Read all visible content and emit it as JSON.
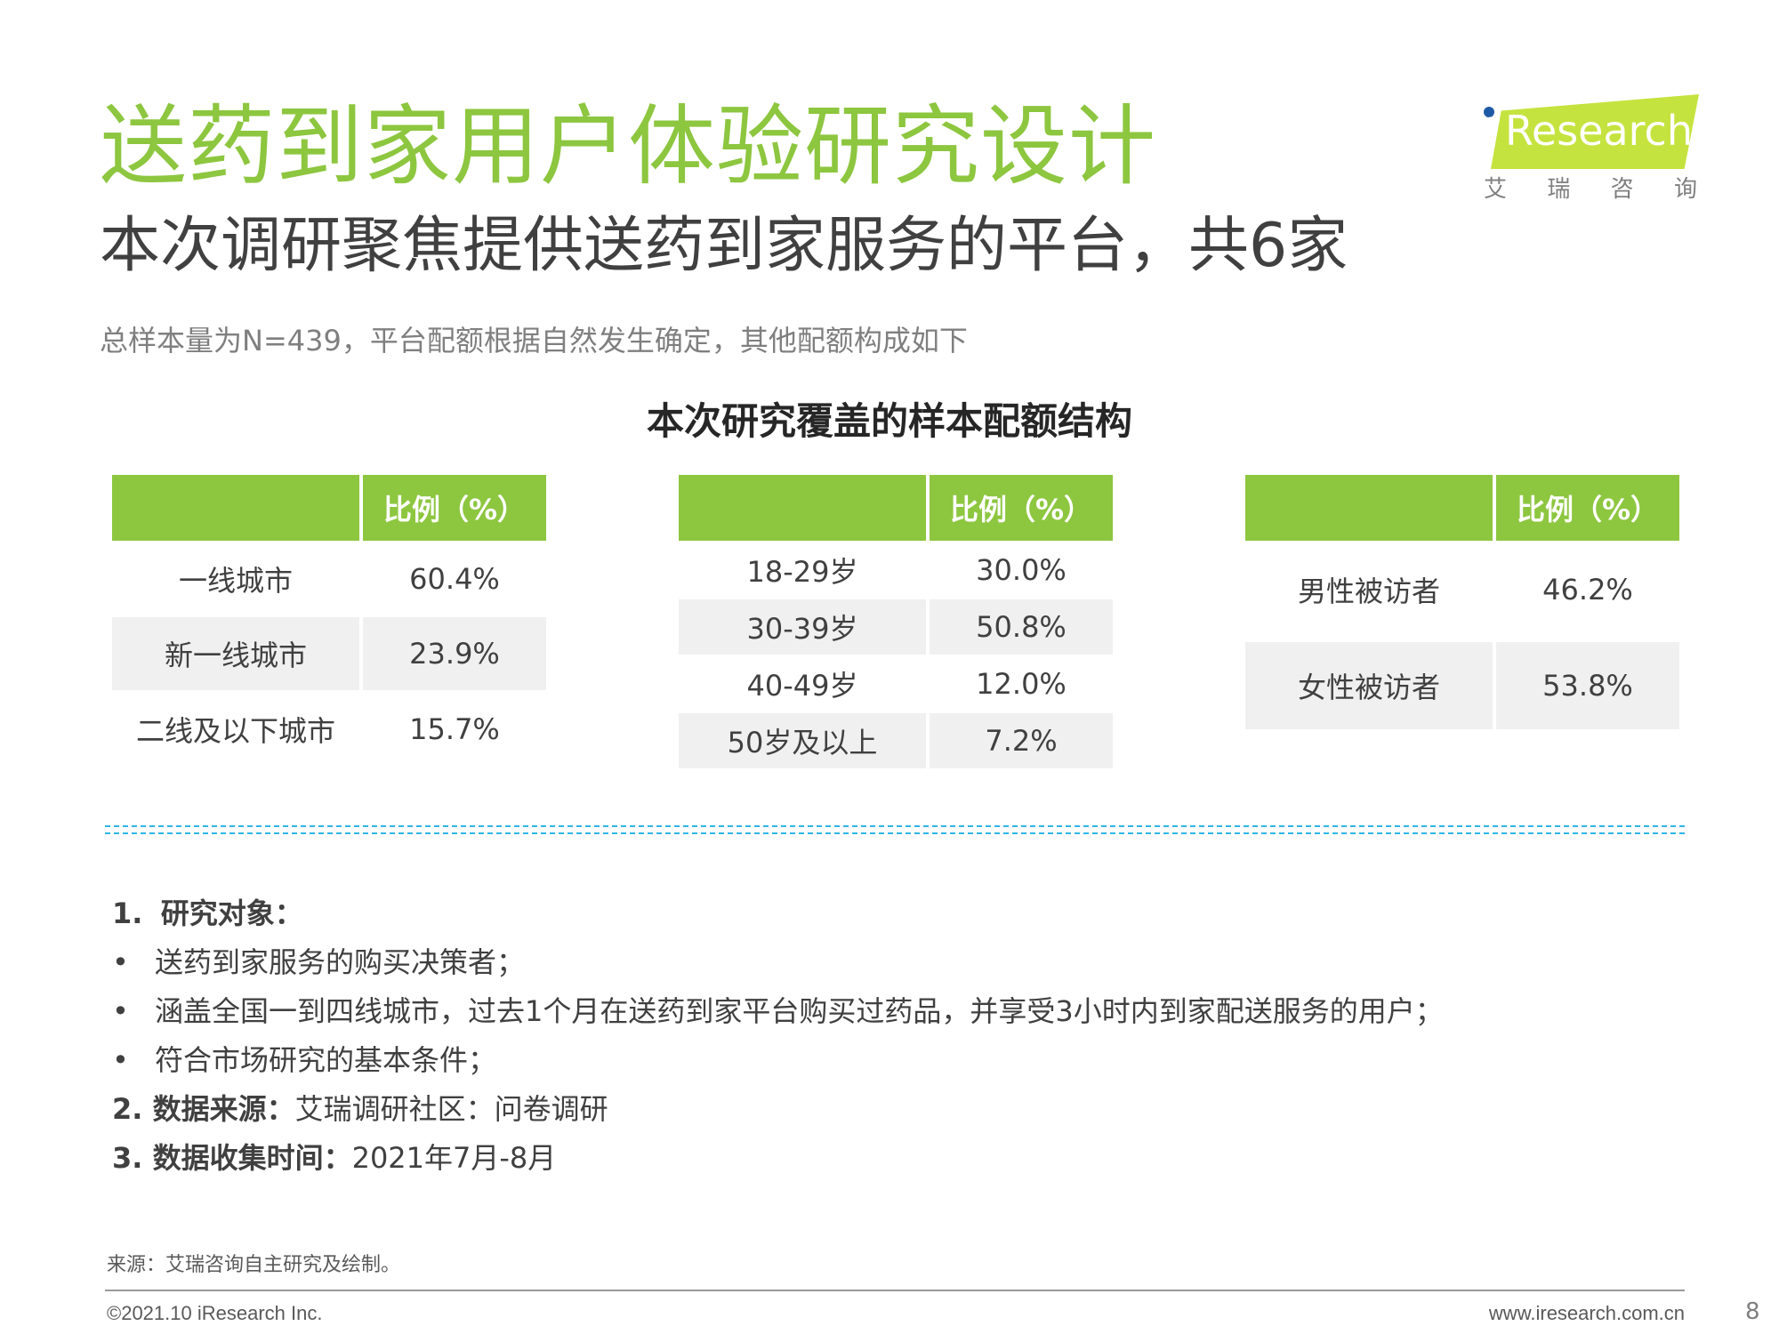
{
  "header": {
    "title": "送药到家用户体验研究设计",
    "subtitle": "本次调研聚焦提供送药到家服务的平台，共6家",
    "intro": "总样本量为N=439，平台配额根据自然发生确定，其他配额构成如下"
  },
  "logo": {
    "dot_i": "i",
    "word": "Research",
    "cn": [
      "艾",
      "瑞",
      "咨",
      "询"
    ]
  },
  "section_title": "本次研究覆盖的样本配额结构",
  "tables": {
    "city": {
      "header_label": "",
      "header_value": "比例（%）",
      "rows": [
        {
          "label": "一线城市",
          "value": "60.4%"
        },
        {
          "label": "新一线城市",
          "value": "23.9%"
        },
        {
          "label": "二线及以下城市",
          "value": "15.7%"
        }
      ]
    },
    "age": {
      "header_label": "",
      "header_value": "比例（%）",
      "rows": [
        {
          "label": "18-29岁",
          "value": "30.0%"
        },
        {
          "label": "30-39岁",
          "value": "50.8%"
        },
        {
          "label": "40-49岁",
          "value": "12.0%"
        },
        {
          "label": "50岁及以上",
          "value": "7.2%"
        }
      ]
    },
    "gender": {
      "header_label": "",
      "header_value": "比例（%）",
      "rows": [
        {
          "label": "男性被访者",
          "value": "46.2%"
        },
        {
          "label": "女性被访者",
          "value": "53.8%"
        }
      ]
    }
  },
  "notes": {
    "n1_prefix": "1.",
    "n1_title": "研究对象：",
    "bullet_mark": "•",
    "bullets": [
      "送药到家服务的购买决策者；",
      "涵盖全国一到四线城市，过去1个月在送药到家平台购买过药品，并享受3小时内到家配送服务的用户；",
      "符合市场研究的基本条件；"
    ],
    "n2_title": "2. 数据来源：",
    "n2_text": "艾瑞调研社区：问卷调研",
    "n3_title": "3. 数据收集时间：",
    "n3_text": "2021年7月-8月"
  },
  "footer": {
    "source": "来源：艾瑞咨询自主研究及绘制。",
    "copyright": "©2021.10 iResearch Inc.",
    "website": "www.iresearch.com.cn",
    "page_number": "8"
  }
}
